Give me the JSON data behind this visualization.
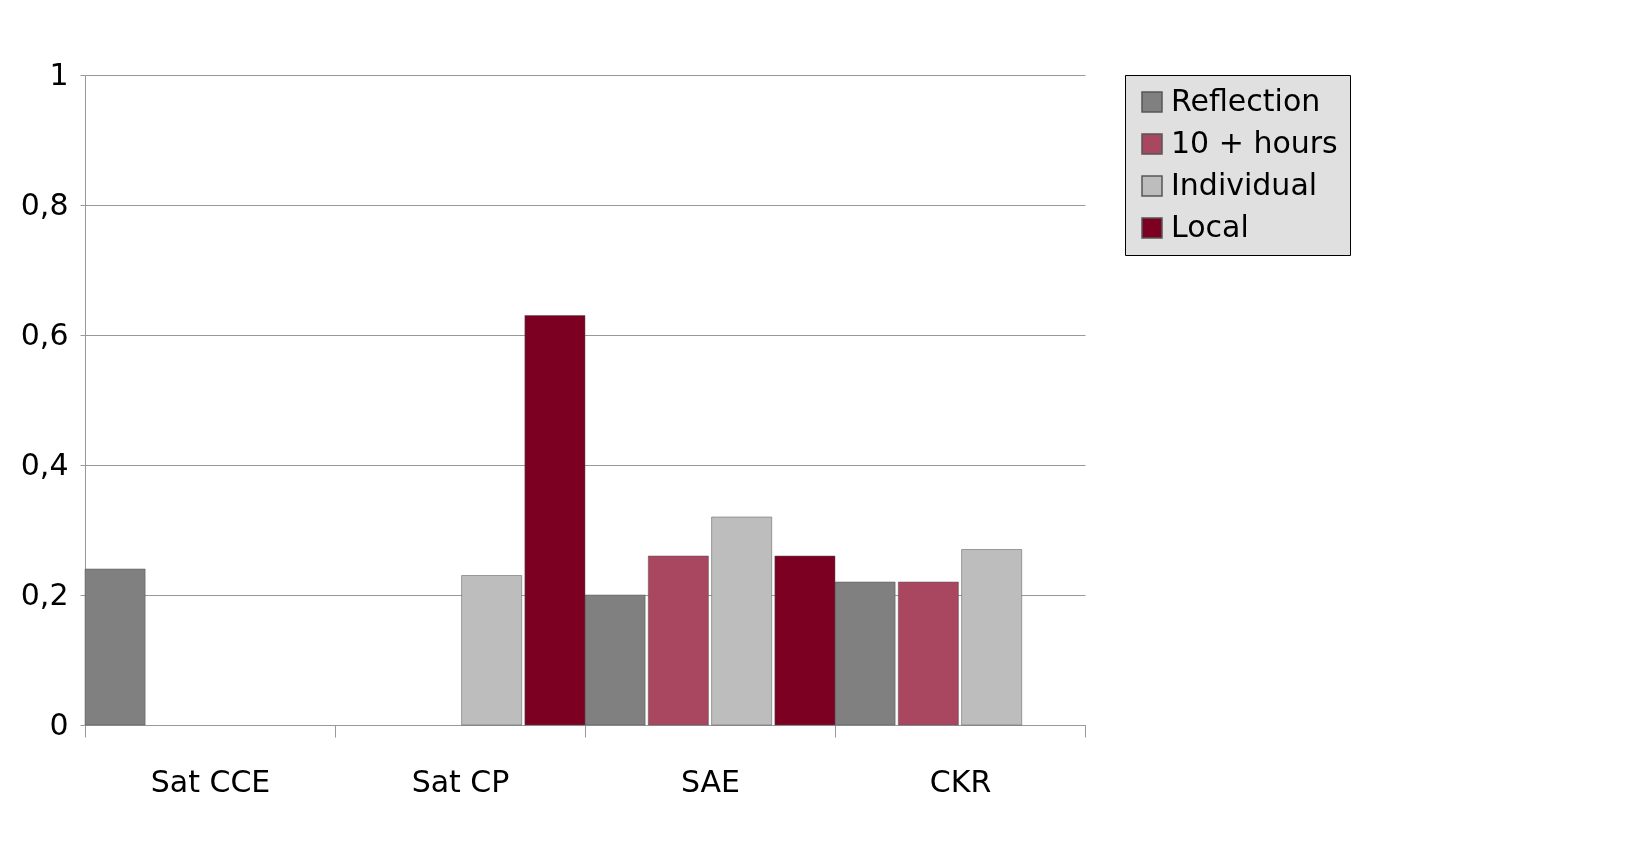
{
  "chart_data": {
    "type": "bar",
    "categories": [
      "Sat CCE",
      "Sat CP",
      "SAE",
      "CKR"
    ],
    "series": [
      {
        "name": "Reflection",
        "color": "#808080",
        "values": [
          0.24,
          null,
          0.2,
          0.22
        ]
      },
      {
        "name": "10 + hours",
        "color": "#a8475f",
        "values": [
          null,
          null,
          0.26,
          0.22
        ]
      },
      {
        "name": "Individual",
        "color": "#bdbdbd",
        "values": [
          null,
          0.23,
          0.32,
          0.27
        ]
      },
      {
        "name": "Local",
        "color": "#7b0022",
        "values": [
          null,
          0.63,
          0.26,
          null
        ]
      }
    ],
    "ylim": [
      0,
      1
    ],
    "yticks": [
      0,
      {
        "value": 0.2,
        "label": "0,2"
      },
      {
        "value": 0.4,
        "label": "0,4"
      },
      {
        "value": 0.6,
        "label": "0,6"
      },
      {
        "value": 0.8,
        "label": "0,8"
      },
      1
    ],
    "grid": "y",
    "legend": "right"
  }
}
